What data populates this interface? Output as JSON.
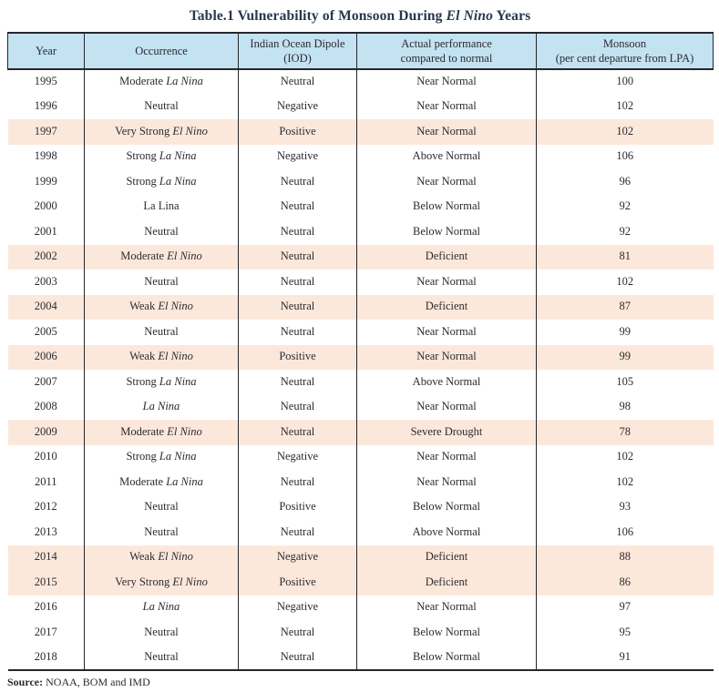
{
  "title": {
    "prefix": "Table.1 Vulnerability of Monsoon During ",
    "italic": "El Nino",
    "suffix": " Years"
  },
  "source": {
    "label": "Source:",
    "text": " NOAA, BOM and IMD"
  },
  "colors": {
    "header_bg": "#c3e2f2",
    "highlight_bg": "#fce8db",
    "title": "#26384f",
    "text": "#2b2b31",
    "border": "#26262b"
  },
  "table": {
    "columns": [
      {
        "id": "year",
        "label": "Year"
      },
      {
        "id": "occurrence",
        "label": "Occurrence"
      },
      {
        "id": "iod",
        "label": "Indian Ocean Dipole\n(IOD)"
      },
      {
        "id": "performance",
        "label": "Actual performance\ncompared to normal"
      },
      {
        "id": "monsoon",
        "label": "Monsoon\n(per cent departure from LPA)"
      }
    ],
    "rows": [
      {
        "year": "1995",
        "occ": "Moderate ",
        "occ_it": "La Nina",
        "iod": "Neutral",
        "perf": "Near Normal",
        "lpa": "100",
        "hl": false
      },
      {
        "year": "1996",
        "occ": "Neutral",
        "occ_it": "",
        "iod": "Negative",
        "perf": "Near Normal",
        "lpa": "102",
        "hl": false
      },
      {
        "year": "1997",
        "occ": "Very Strong ",
        "occ_it": "El Nino",
        "iod": "Positive",
        "perf": "Near Normal",
        "lpa": "102",
        "hl": true
      },
      {
        "year": "1998",
        "occ": "Strong ",
        "occ_it": "La Nina",
        "iod": "Negative",
        "perf": "Above Normal",
        "lpa": "106",
        "hl": false
      },
      {
        "year": "1999",
        "occ": "Strong ",
        "occ_it": "La Nina",
        "iod": "Neutral",
        "perf": "Near Normal",
        "lpa": "96",
        "hl": false
      },
      {
        "year": "2000",
        "occ": "La Lina",
        "occ_it": "",
        "iod": "Neutral",
        "perf": "Below Normal",
        "lpa": "92",
        "hl": false
      },
      {
        "year": "2001",
        "occ": "Neutral",
        "occ_it": "",
        "iod": "Neutral",
        "perf": "Below Normal",
        "lpa": "92",
        "hl": false
      },
      {
        "year": "2002",
        "occ": "Moderate ",
        "occ_it": "El Nino",
        "iod": "Neutral",
        "perf": "Deficient",
        "lpa": "81",
        "hl": true
      },
      {
        "year": "2003",
        "occ": "Neutral",
        "occ_it": "",
        "iod": "Neutral",
        "perf": "Near Normal",
        "lpa": "102",
        "hl": false
      },
      {
        "year": "2004",
        "occ": "Weak ",
        "occ_it": "El Nino",
        "iod": "Neutral",
        "perf": "Deficient",
        "lpa": "87",
        "hl": true
      },
      {
        "year": "2005",
        "occ": "Neutral",
        "occ_it": "",
        "iod": "Neutral",
        "perf": "Near Normal",
        "lpa": "99",
        "hl": false
      },
      {
        "year": "2006",
        "occ": "Weak ",
        "occ_it": "El Nino",
        "iod": "Positive",
        "perf": "Near Normal",
        "lpa": "99",
        "hl": true
      },
      {
        "year": "2007",
        "occ": "Strong ",
        "occ_it": "La Nina",
        "iod": "Neutral",
        "perf": "Above Normal",
        "lpa": "105",
        "hl": false
      },
      {
        "year": "2008",
        "occ": "",
        "occ_it": "La Nina",
        "iod": "Neutral",
        "perf": "Near Normal",
        "lpa": "98",
        "hl": false
      },
      {
        "year": "2009",
        "occ": "Moderate ",
        "occ_it": "El Nino",
        "iod": "Neutral",
        "perf": "Severe Drought",
        "lpa": "78",
        "hl": true
      },
      {
        "year": "2010",
        "occ": "Strong ",
        "occ_it": "La Nina",
        "iod": "Negative",
        "perf": "Near Normal",
        "lpa": "102",
        "hl": false
      },
      {
        "year": "2011",
        "occ": "Moderate ",
        "occ_it": "La Nina",
        "iod": "Neutral",
        "perf": "Near Normal",
        "lpa": "102",
        "hl": false
      },
      {
        "year": "2012",
        "occ": "Neutral",
        "occ_it": "",
        "iod": "Positive",
        "perf": "Below Normal",
        "lpa": "93",
        "hl": false
      },
      {
        "year": "2013",
        "occ": "Neutral",
        "occ_it": "",
        "iod": "Neutral",
        "perf": "Above Normal",
        "lpa": "106",
        "hl": false
      },
      {
        "year": "2014",
        "occ": "Weak ",
        "occ_it": "El Nino",
        "iod": "Negative",
        "perf": "Deficient",
        "lpa": "88",
        "hl": true
      },
      {
        "year": "2015",
        "occ": "Very Strong ",
        "occ_it": "El Nino",
        "iod": "Positive",
        "perf": "Deficient",
        "lpa": "86",
        "hl": true
      },
      {
        "year": "2016",
        "occ": "",
        "occ_it": "La Nina",
        "iod": "Negative",
        "perf": "Near Normal",
        "lpa": "97",
        "hl": false
      },
      {
        "year": "2017",
        "occ": "Neutral",
        "occ_it": "",
        "iod": "Neutral",
        "perf": "Below Normal",
        "lpa": "95",
        "hl": false
      },
      {
        "year": "2018",
        "occ": "Neutral",
        "occ_it": "",
        "iod": "Neutral",
        "perf": "Below Normal",
        "lpa": "91",
        "hl": false
      }
    ]
  }
}
